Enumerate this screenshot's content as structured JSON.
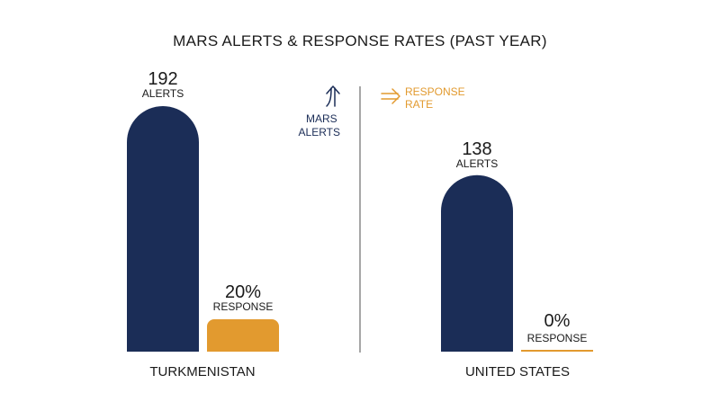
{
  "chart_data": {
    "type": "bar",
    "title": "MARS ALERTS & RESPONSE RATES (PAST YEAR)",
    "legend": [
      {
        "label_lines": [
          "MARS",
          "ALERTS"
        ],
        "icon": "up-arrow-icon",
        "color": "#1b2d57"
      },
      {
        "label_lines": [
          "RESPONSE",
          "RATE"
        ],
        "icon": "right-arrow-icon",
        "color": "#e29a2f"
      }
    ],
    "countries": [
      {
        "name": "TURKMENISTAN",
        "alerts": 192,
        "alerts_value_label": "192",
        "alerts_unit_label": "ALERTS",
        "response_rate": 20,
        "response_value_label": "20%",
        "response_unit_label": "RESPONSE"
      },
      {
        "name": "UNITED STATES",
        "alerts": 138,
        "alerts_value_label": "138",
        "alerts_unit_label": "ALERTS",
        "response_rate": 0,
        "response_value_label": "0%",
        "response_unit_label": "RESPONSE"
      }
    ],
    "alerts_max": 192,
    "response_max": 100,
    "grid": false,
    "legend_placement": "center",
    "colors": {
      "alerts": "#1b2d57",
      "response": "#e29a2f",
      "divider": "#888888",
      "text": "#1a1a1a"
    }
  }
}
